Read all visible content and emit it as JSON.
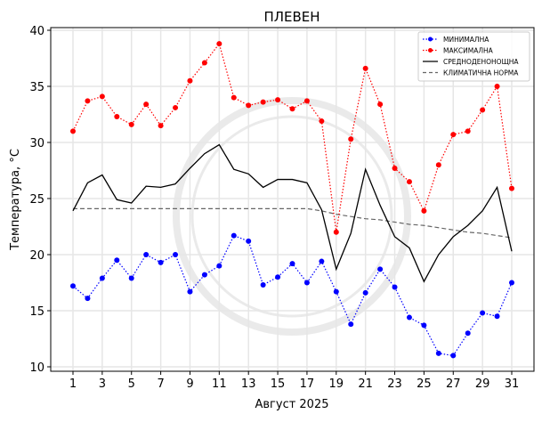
{
  "chart_data": {
    "type": "line",
    "title": "ПЛЕВЕН",
    "xlabel": "Август  2025",
    "ylabel": "Температура,  °C",
    "xlim": [
      0.2,
      32
    ],
    "ylim": [
      9.5,
      40.2
    ],
    "xticks": [
      1,
      3,
      5,
      7,
      9,
      11,
      13,
      15,
      17,
      19,
      21,
      23,
      25,
      27,
      29,
      31
    ],
    "yticks": [
      10,
      15,
      20,
      25,
      30,
      35,
      40
    ],
    "grid": true,
    "legend_position": "top-right",
    "x": [
      1,
      2,
      3,
      4,
      5,
      6,
      7,
      8,
      9,
      10,
      11,
      12,
      13,
      14,
      15,
      16,
      17,
      18,
      19,
      20,
      21,
      22,
      23,
      24,
      25,
      26,
      27,
      28,
      29,
      30,
      31
    ],
    "series": [
      {
        "name": "МИНИМАЛНА",
        "color": "#0000ff",
        "style": "dotted-markers",
        "values": [
          17.2,
          16.1,
          17.9,
          19.5,
          17.9,
          20.0,
          19.3,
          20.0,
          16.7,
          18.2,
          19.0,
          21.7,
          21.2,
          17.3,
          18.0,
          19.2,
          17.5,
          19.4,
          16.7,
          13.8,
          16.6,
          18.7,
          17.1,
          14.4,
          13.7,
          11.2,
          11.0,
          13.0,
          14.8,
          14.5,
          17.5
        ]
      },
      {
        "name": "МАКСИМАЛНА",
        "color": "#ff0000",
        "style": "dotted-markers",
        "values": [
          31.0,
          33.7,
          34.1,
          32.3,
          31.6,
          33.4,
          31.5,
          33.1,
          35.5,
          37.1,
          38.8,
          34.0,
          33.3,
          33.6,
          33.8,
          33.0,
          33.7,
          31.9,
          22.0,
          30.3,
          36.6,
          33.4,
          27.7,
          26.5,
          23.9,
          28.0,
          30.7,
          31.0,
          32.9,
          35.0,
          25.9
        ]
      },
      {
        "name": "СРЕДНОДЕНОНОЩНА",
        "color": "#000000",
        "style": "solid",
        "values": [
          23.9,
          26.4,
          27.1,
          24.9,
          24.6,
          26.1,
          26.0,
          26.3,
          27.7,
          29.0,
          29.8,
          27.6,
          27.2,
          26.0,
          26.7,
          26.7,
          26.4,
          24.0,
          18.7,
          21.9,
          27.6,
          24.4,
          21.6,
          20.6,
          17.6,
          20.0,
          21.6,
          22.6,
          23.9,
          26.0,
          20.3
        ]
      },
      {
        "name": "КЛИМАТИЧНА НОРМА",
        "color": "#666666",
        "style": "dashed",
        "values": [
          24.1,
          24.1,
          24.1,
          24.1,
          24.1,
          24.1,
          24.1,
          24.1,
          24.1,
          24.1,
          24.1,
          24.1,
          24.1,
          24.1,
          24.1,
          24.1,
          24.1,
          23.9,
          23.6,
          23.4,
          23.2,
          23.1,
          22.9,
          22.7,
          22.6,
          22.4,
          22.2,
          22.0,
          21.9,
          21.7,
          21.5
        ]
      }
    ]
  }
}
